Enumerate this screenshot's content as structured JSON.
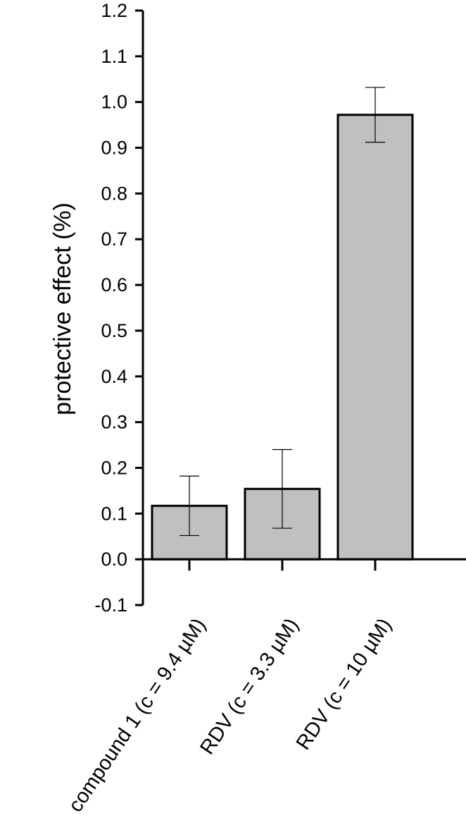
{
  "chart_data": {
    "type": "bar",
    "title": "",
    "xlabel": "",
    "ylabel": "protective effect (%)",
    "categories": [
      "compound 1 (c = 9.4 µM)",
      "RDV (c = 3.3 µM)",
      "RDV (c = 10 µM)"
    ],
    "values": [
      0.117,
      0.154,
      0.972
    ],
    "errors": [
      0.065,
      0.086,
      0.06
    ],
    "ylim": [
      -0.1,
      1.2
    ],
    "yticks": [
      "-0.1",
      "0.0",
      "0.1",
      "0.2",
      "0.3",
      "0.4",
      "0.5",
      "0.6",
      "0.7",
      "0.8",
      "0.9",
      "1.0",
      "1.1",
      "1.2"
    ],
    "grid": false,
    "legend": "none",
    "bar_color": "#c0c0c0",
    "edge_color": "#000000"
  }
}
